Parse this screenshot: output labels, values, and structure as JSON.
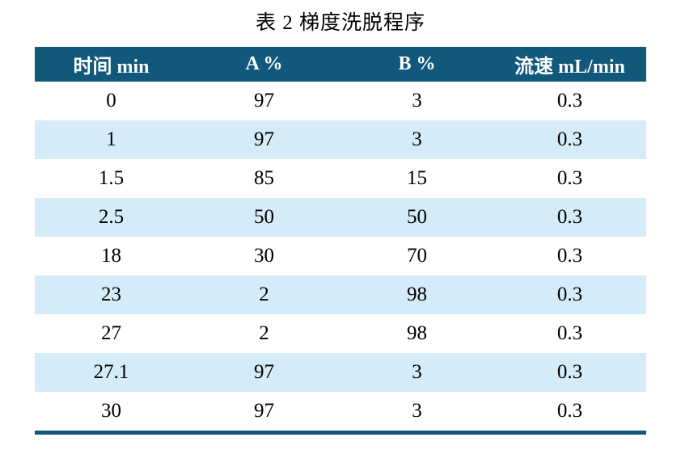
{
  "title": "表 2  梯度洗脱程序",
  "table": {
    "headers": [
      "时间  min",
      "A %",
      "B %",
      "流速  mL/min"
    ],
    "rows": [
      [
        "0",
        "97",
        "3",
        "0.3"
      ],
      [
        "1",
        "97",
        "3",
        "0.3"
      ],
      [
        "1.5",
        "85",
        "15",
        "0.3"
      ],
      [
        "2.5",
        "50",
        "50",
        "0.3"
      ],
      [
        "18",
        "30",
        "70",
        "0.3"
      ],
      [
        "23",
        "2",
        "98",
        "0.3"
      ],
      [
        "27",
        "2",
        "98",
        "0.3"
      ],
      [
        "27.1",
        "97",
        "3",
        "0.3"
      ],
      [
        "30",
        "97",
        "3",
        "0.3"
      ]
    ]
  },
  "colors": {
    "header_background": "#11587b",
    "header_text": "#ffffff",
    "row_alternate_background": "#d5ecf8",
    "row_background": "#ffffff",
    "bottom_rule": "#11587b",
    "body_text": "#000000"
  }
}
